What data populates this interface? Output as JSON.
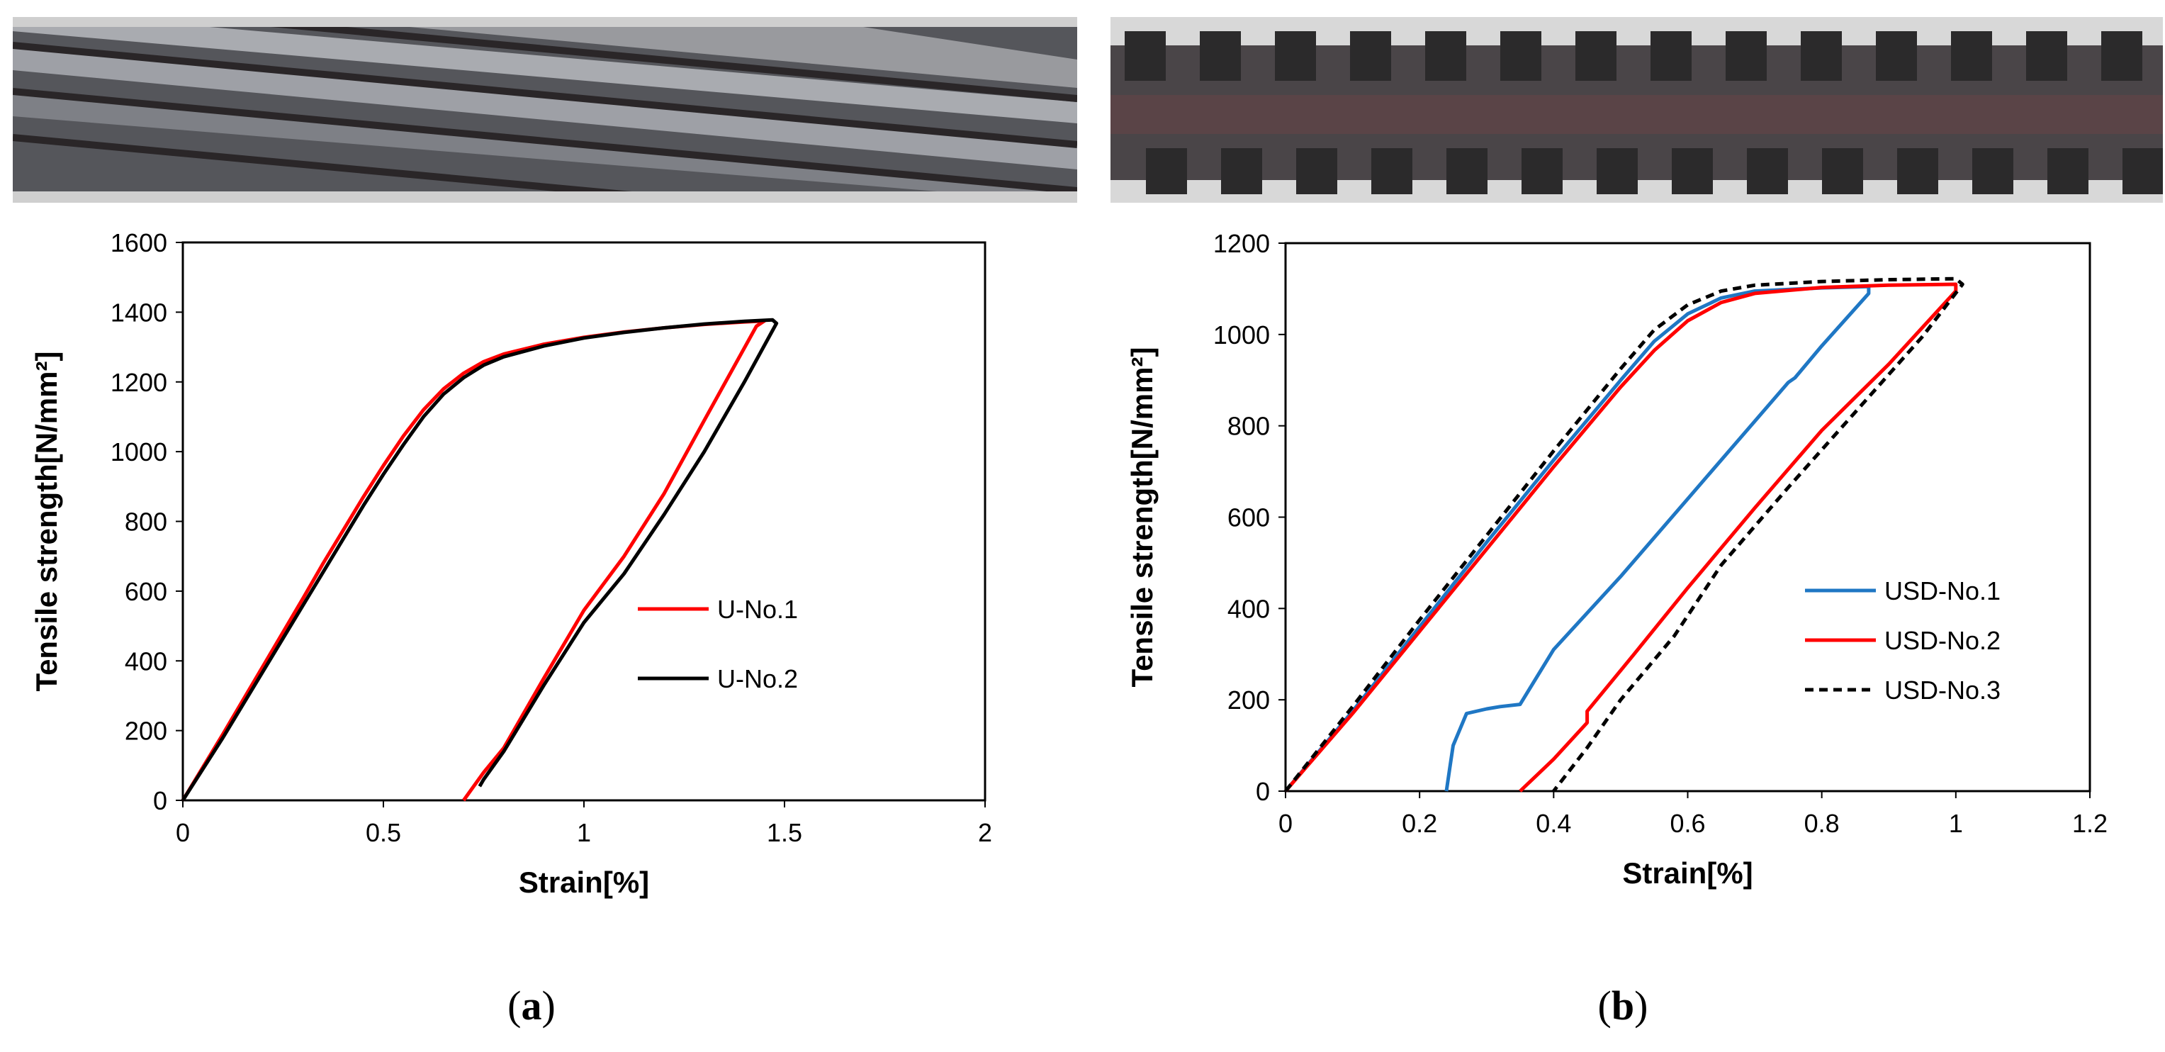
{
  "panels": [
    {
      "caption_letter": "a",
      "photo": {
        "description_icon": "twisted-strand-photo",
        "colors": {
          "bg": "#cfcfcf",
          "steel_dark": "#3e3f43",
          "steel_mid": "#6f7075",
          "steel_light": "#b9bbc0",
          "groove": "#2a2628"
        }
      }
    },
    {
      "caption_letter": "b",
      "photo": {
        "description_icon": "deformed-bar-photo",
        "colors": {
          "bg": "#d8d8d8",
          "steel_dark": "#2b2a2b",
          "steel_mid": "#4a4548",
          "rust": "#5a4447"
        }
      }
    }
  ],
  "chart_data": [
    {
      "type": "line",
      "xlabel": "Strain[%]",
      "ylabel": "Tensile strength[N/mm²]",
      "xlim": [
        0,
        2
      ],
      "ylim": [
        0,
        1600
      ],
      "xticks": [
        0,
        0.5,
        1,
        1.5,
        2
      ],
      "xtick_labels": [
        "0",
        "0.5",
        "1",
        "1.5",
        "2"
      ],
      "yticks": [
        0,
        200,
        400,
        600,
        800,
        1000,
        1200,
        1400,
        1600
      ],
      "ytick_labels": [
        "0",
        "200",
        "400",
        "600",
        "800",
        "1000",
        "1200",
        "1400",
        "1600"
      ],
      "grid": false,
      "legend_position": "right-middle",
      "series": [
        {
          "name": "U-No.1",
          "color": "#ff0000",
          "dash": "solid",
          "points": [
            [
              0,
              0
            ],
            [
              0.1,
              190
            ],
            [
              0.2,
              385
            ],
            [
              0.3,
              580
            ],
            [
              0.35,
              680
            ],
            [
              0.4,
              775
            ],
            [
              0.45,
              870
            ],
            [
              0.5,
              960
            ],
            [
              0.55,
              1045
            ],
            [
              0.6,
              1120
            ],
            [
              0.65,
              1180
            ],
            [
              0.7,
              1225
            ],
            [
              0.75,
              1258
            ],
            [
              0.8,
              1280
            ],
            [
              0.9,
              1308
            ],
            [
              1.0,
              1328
            ],
            [
              1.1,
              1343
            ],
            [
              1.2,
              1355
            ],
            [
              1.3,
              1365
            ],
            [
              1.4,
              1372
            ],
            [
              1.45,
              1375
            ],
            [
              1.43,
              1360
            ],
            [
              1.3,
              1090
            ],
            [
              1.2,
              880
            ],
            [
              1.1,
              700
            ],
            [
              1.0,
              545
            ],
            [
              0.9,
              350
            ],
            [
              0.8,
              150
            ],
            [
              0.75,
              80
            ],
            [
              0.7,
              0
            ]
          ]
        },
        {
          "name": "U-No.2",
          "color": "#000000",
          "dash": "solid",
          "points": [
            [
              0,
              0
            ],
            [
              0.1,
              180
            ],
            [
              0.2,
              370
            ],
            [
              0.3,
              560
            ],
            [
              0.35,
              655
            ],
            [
              0.4,
              750
            ],
            [
              0.45,
              845
            ],
            [
              0.5,
              935
            ],
            [
              0.55,
              1020
            ],
            [
              0.6,
              1100
            ],
            [
              0.65,
              1165
            ],
            [
              0.7,
              1212
            ],
            [
              0.75,
              1248
            ],
            [
              0.8,
              1272
            ],
            [
              0.9,
              1303
            ],
            [
              1.0,
              1326
            ],
            [
              1.1,
              1342
            ],
            [
              1.2,
              1355
            ],
            [
              1.3,
              1366
            ],
            [
              1.4,
              1374
            ],
            [
              1.47,
              1378
            ],
            [
              1.48,
              1368
            ],
            [
              1.4,
              1200
            ],
            [
              1.3,
              1000
            ],
            [
              1.2,
              820
            ],
            [
              1.1,
              650
            ],
            [
              1.0,
              510
            ],
            [
              0.9,
              330
            ],
            [
              0.8,
              140
            ],
            [
              0.75,
              60
            ],
            [
              0.74,
              40
            ]
          ]
        }
      ]
    },
    {
      "type": "line",
      "xlabel": "Strain[%]",
      "ylabel": "Tensile strength[N/mm²]",
      "xlim": [
        0,
        1.2
      ],
      "ylim": [
        0,
        1200
      ],
      "xticks": [
        0,
        0.2,
        0.4,
        0.6,
        0.8,
        1,
        1.2
      ],
      "xtick_labels": [
        "0",
        "0.2",
        "0.4",
        "0.6",
        "0.8",
        "1",
        "1.2"
      ],
      "yticks": [
        0,
        200,
        400,
        600,
        800,
        1000,
        1200
      ],
      "ytick_labels": [
        "0",
        "200",
        "400",
        "600",
        "800",
        "1000",
        "1200"
      ],
      "grid": false,
      "legend_position": "right-middle",
      "series": [
        {
          "name": "USD-No.1",
          "color": "#1f77c4",
          "dash": "solid",
          "points": [
            [
              0,
              0
            ],
            [
              0.1,
              175
            ],
            [
              0.2,
              360
            ],
            [
              0.3,
              545
            ],
            [
              0.4,
              725
            ],
            [
              0.5,
              900
            ],
            [
              0.55,
              985
            ],
            [
              0.6,
              1045
            ],
            [
              0.65,
              1080
            ],
            [
              0.7,
              1095
            ],
            [
              0.8,
              1102
            ],
            [
              0.87,
              1105
            ],
            [
              0.87,
              1090
            ],
            [
              0.8,
              975
            ],
            [
              0.76,
              905
            ],
            [
              0.75,
              895
            ],
            [
              0.7,
              810
            ],
            [
              0.6,
              640
            ],
            [
              0.5,
              470
            ],
            [
              0.4,
              310
            ],
            [
              0.35,
              190
            ],
            [
              0.32,
              185
            ],
            [
              0.3,
              180
            ],
            [
              0.27,
              170
            ],
            [
              0.25,
              100
            ],
            [
              0.245,
              50
            ],
            [
              0.24,
              0
            ]
          ]
        },
        {
          "name": "USD-No.2",
          "color": "#ff0000",
          "dash": "solid",
          "points": [
            [
              0,
              0
            ],
            [
              0.1,
              170
            ],
            [
              0.2,
              350
            ],
            [
              0.3,
              530
            ],
            [
              0.4,
              710
            ],
            [
              0.5,
              885
            ],
            [
              0.55,
              965
            ],
            [
              0.6,
              1030
            ],
            [
              0.65,
              1070
            ],
            [
              0.7,
              1090
            ],
            [
              0.8,
              1103
            ],
            [
              0.9,
              1108
            ],
            [
              1.0,
              1110
            ],
            [
              1.0,
              1095
            ],
            [
              0.9,
              935
            ],
            [
              0.8,
              790
            ],
            [
              0.7,
              620
            ],
            [
              0.6,
              445
            ],
            [
              0.52,
              300
            ],
            [
              0.45,
              175
            ],
            [
              0.45,
              150
            ],
            [
              0.4,
              70
            ],
            [
              0.35,
              0
            ]
          ]
        },
        {
          "name": "USD-No.3",
          "color": "#000000",
          "dash": "dashed",
          "points": [
            [
              0,
              0
            ],
            [
              0.1,
              185
            ],
            [
              0.2,
              375
            ],
            [
              0.3,
              560
            ],
            [
              0.4,
              745
            ],
            [
              0.5,
              925
            ],
            [
              0.55,
              1010
            ],
            [
              0.6,
              1065
            ],
            [
              0.65,
              1095
            ],
            [
              0.7,
              1108
            ],
            [
              0.8,
              1116
            ],
            [
              0.9,
              1120
            ],
            [
              1.0,
              1122
            ],
            [
              1.01,
              1110
            ],
            [
              0.95,
              995
            ],
            [
              0.85,
              830
            ],
            [
              0.75,
              665
            ],
            [
              0.65,
              495
            ],
            [
              0.58,
              340
            ],
            [
              0.5,
              200
            ],
            [
              0.45,
              95
            ],
            [
              0.4,
              0
            ]
          ]
        }
      ]
    }
  ]
}
